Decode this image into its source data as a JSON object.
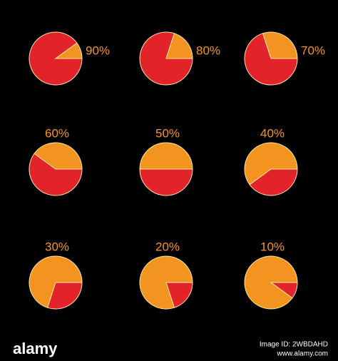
{
  "chart_data": [
    {
      "type": "pie",
      "values": [
        90,
        10
      ],
      "value_labels": [
        "90%",
        null
      ],
      "colors": [
        "#e2232a",
        "#f39420"
      ]
    },
    {
      "type": "pie",
      "values": [
        80,
        20
      ],
      "value_labels": [
        "80%",
        null
      ],
      "colors": [
        "#e2232a",
        "#f39420"
      ]
    },
    {
      "type": "pie",
      "values": [
        70,
        30
      ],
      "value_labels": [
        "70%",
        null
      ],
      "colors": [
        "#e2232a",
        "#f39420"
      ]
    },
    {
      "type": "pie",
      "values": [
        60,
        40
      ],
      "value_labels": [
        "60%",
        null
      ],
      "colors": [
        "#e2232a",
        "#f39420"
      ]
    },
    {
      "type": "pie",
      "values": [
        50,
        50
      ],
      "value_labels": [
        "50%",
        null
      ],
      "colors": [
        "#e2232a",
        "#f39420"
      ]
    },
    {
      "type": "pie",
      "values": [
        40,
        60
      ],
      "value_labels": [
        "40%",
        null
      ],
      "colors": [
        "#e2232a",
        "#f39420"
      ]
    },
    {
      "type": "pie",
      "values": [
        30,
        70
      ],
      "value_labels": [
        "30%",
        null
      ],
      "colors": [
        "#e2232a",
        "#f39420"
      ]
    },
    {
      "type": "pie",
      "values": [
        20,
        80
      ],
      "value_labels": [
        "20%",
        null
      ],
      "colors": [
        "#e2232a",
        "#f39420"
      ]
    },
    {
      "type": "pie",
      "values": [
        10,
        90
      ],
      "value_labels": [
        "10%",
        null
      ],
      "colors": [
        "#e2232a",
        "#f39420"
      ]
    }
  ],
  "footer": {
    "brand": "alamy",
    "image_id": "Image ID: 2WBDAHD",
    "site": "www.alamy.com"
  }
}
